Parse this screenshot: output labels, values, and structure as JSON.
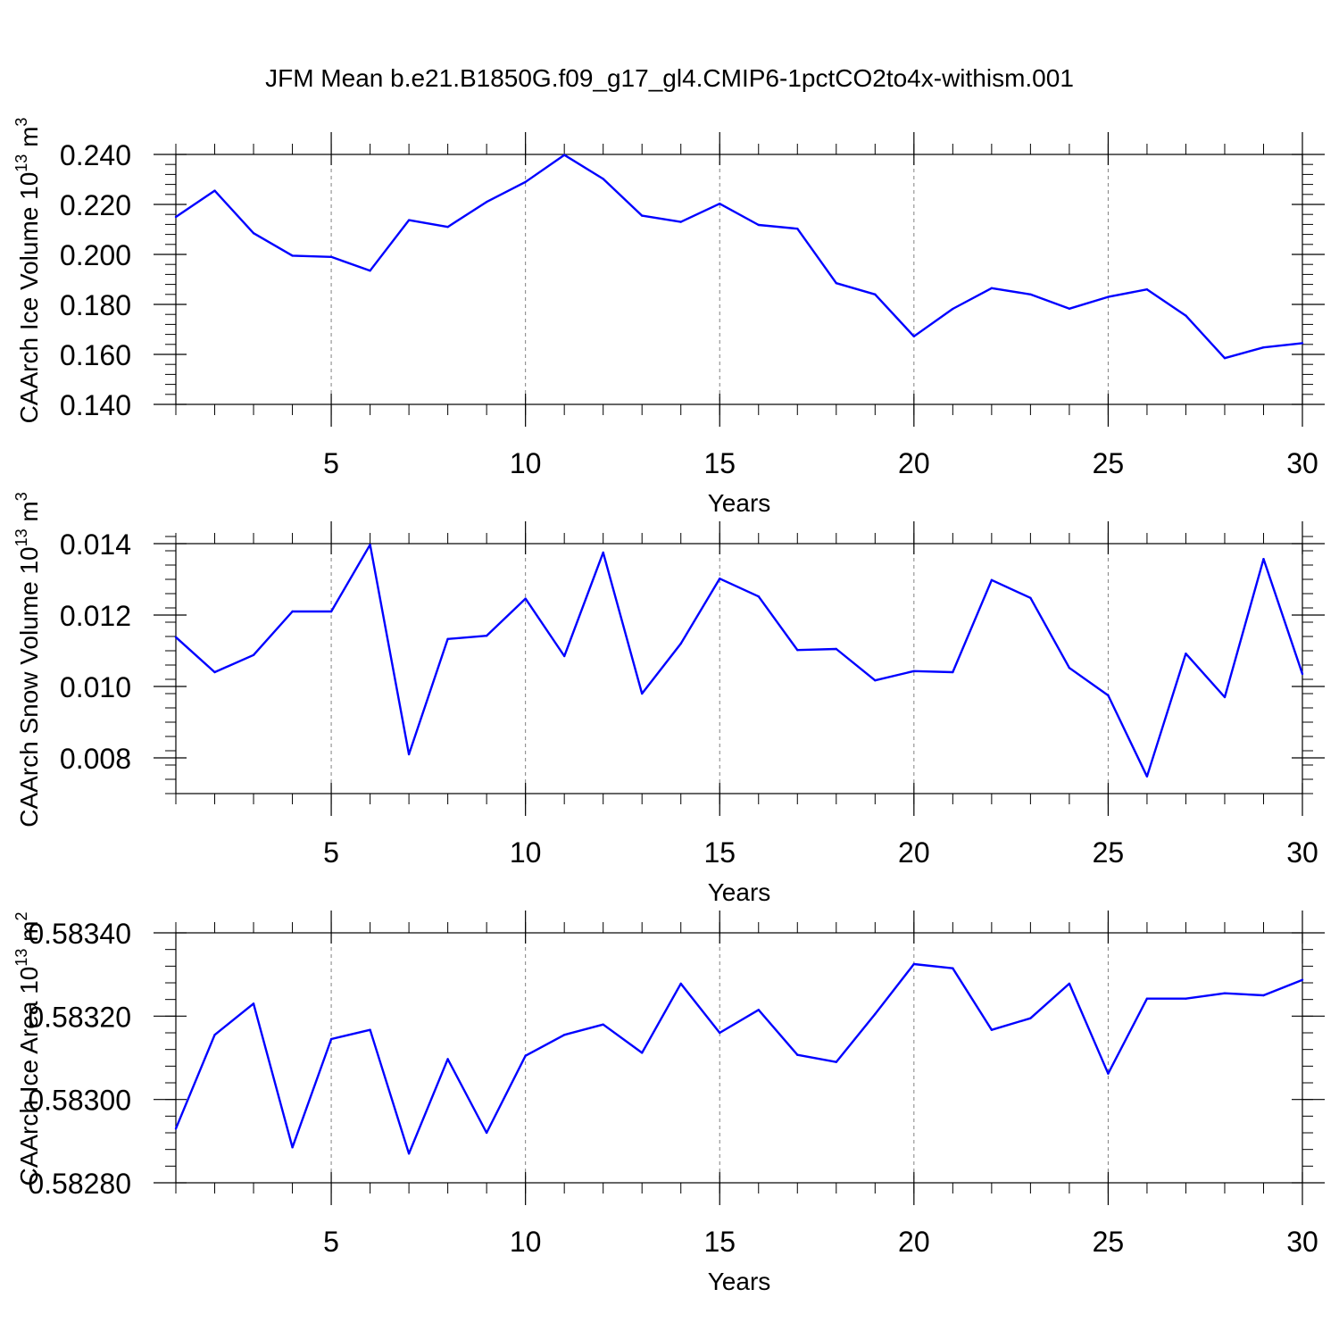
{
  "title": "JFM Mean b.e21.B1850G.f09_g17_gl4.CMIP6-1pctCO2to4x-withism.001",
  "colors": {
    "line": "#0000ff",
    "axis": "#000000",
    "grid": "#808080"
  },
  "chart_data": [
    {
      "type": "line",
      "ylabel": "CAArch Ice Volume",
      "ylabel_exp": "13",
      "ylabel_unit_exp": "3",
      "xlabel": "Years",
      "xlim": [
        1,
        30
      ],
      "ylim": [
        0.14,
        0.24
      ],
      "xticks": [
        5,
        10,
        15,
        20,
        25,
        30
      ],
      "xtick_labels": [
        "5",
        "10",
        "15",
        "20",
        "25",
        "30"
      ],
      "yticks": [
        0.14,
        0.16,
        0.18,
        0.2,
        0.22,
        0.24
      ],
      "ytick_labels": [
        "0.140",
        "0.160",
        "0.180",
        "0.200",
        "0.220",
        "0.240"
      ],
      "x": [
        1,
        2,
        3,
        4,
        5,
        6,
        7,
        8,
        9,
        10,
        11,
        12,
        13,
        14,
        15,
        16,
        17,
        18,
        19,
        20,
        21,
        22,
        23,
        24,
        25,
        26,
        27,
        28,
        29,
        30
      ],
      "values": [
        0.215,
        0.2255,
        0.2085,
        0.1995,
        0.199,
        0.1935,
        0.2137,
        0.211,
        0.221,
        0.229,
        0.2398,
        0.2302,
        0.2155,
        0.213,
        0.2203,
        0.2118,
        0.2103,
        0.1885,
        0.184,
        0.1672,
        0.1782,
        0.1865,
        0.184,
        0.1783,
        0.183,
        0.186,
        0.1755,
        0.1585,
        0.1628,
        0.1645
      ]
    },
    {
      "type": "line",
      "ylabel": "CAArch Snow Volume",
      "ylabel_exp": "13",
      "ylabel_unit_exp": "3",
      "xlabel": "Years",
      "xlim": [
        1,
        30
      ],
      "ylim": [
        0.007,
        0.014
      ],
      "xticks": [
        5,
        10,
        15,
        20,
        25,
        30
      ],
      "xtick_labels": [
        "5",
        "10",
        "15",
        "20",
        "25",
        "30"
      ],
      "yticks": [
        0.008,
        0.01,
        0.012,
        0.014
      ],
      "ytick_labels": [
        "0.008",
        "0.010",
        "0.012",
        "0.014"
      ],
      "x": [
        1,
        2,
        3,
        4,
        5,
        6,
        7,
        8,
        9,
        10,
        11,
        12,
        13,
        14,
        15,
        16,
        17,
        18,
        19,
        20,
        21,
        22,
        23,
        24,
        25,
        26,
        27,
        28,
        29,
        30
      ],
      "values": [
        0.01138,
        0.0104,
        0.01088,
        0.0121,
        0.0121,
        0.01397,
        0.0081,
        0.01133,
        0.01142,
        0.01246,
        0.01085,
        0.01375,
        0.0098,
        0.0112,
        0.01302,
        0.01252,
        0.01102,
        0.01105,
        0.01017,
        0.01043,
        0.0104,
        0.01298,
        0.01248,
        0.01052,
        0.00975,
        0.00748,
        0.01092,
        0.0097,
        0.01357,
        0.01035
      ]
    },
    {
      "type": "line",
      "ylabel": "CAArch Ice Area",
      "ylabel_exp": "13",
      "ylabel_unit_exp": "2",
      "xlabel": "Years",
      "xlim": [
        1,
        30
      ],
      "ylim": [
        0.5828,
        0.5834
      ],
      "xticks": [
        5,
        10,
        15,
        20,
        25,
        30
      ],
      "xtick_labels": [
        "5",
        "10",
        "15",
        "20",
        "25",
        "30"
      ],
      "yticks": [
        0.5828,
        0.583,
        0.5832,
        0.5834
      ],
      "ytick_labels": [
        "0.58280",
        "0.58300",
        "0.58320",
        "0.58340"
      ],
      "x": [
        1,
        2,
        3,
        4,
        5,
        6,
        7,
        8,
        9,
        10,
        11,
        12,
        13,
        14,
        15,
        16,
        17,
        18,
        19,
        20,
        21,
        22,
        23,
        24,
        25,
        26,
        27,
        28,
        29,
        30
      ],
      "values": [
        0.58293,
        0.583155,
        0.58323,
        0.582885,
        0.583145,
        0.583167,
        0.58287,
        0.583097,
        0.58292,
        0.583105,
        0.583155,
        0.58318,
        0.583112,
        0.583278,
        0.58316,
        0.583215,
        0.583107,
        0.58309,
        0.583205,
        0.583325,
        0.583315,
        0.583167,
        0.583195,
        0.583278,
        0.583062,
        0.583242,
        0.583242,
        0.583255,
        0.58325,
        0.583287
      ]
    }
  ]
}
